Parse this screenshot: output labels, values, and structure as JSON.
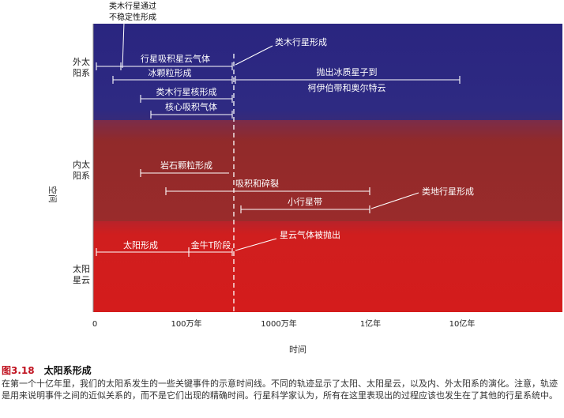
{
  "rows": [
    {
      "id": "outer",
      "label_lines": [
        "外太",
        "阳系"
      ]
    },
    {
      "id": "inner",
      "label_lines": [
        "内太",
        "阳系"
      ]
    },
    {
      "id": "nebula",
      "label_lines": [
        "太阳",
        "星云"
      ]
    }
  ],
  "y_axis_label": "空间",
  "x_axis_label": "时间",
  "ticks": [
    "0",
    "100万年",
    "1000万年",
    "1亿年",
    "10亿年"
  ],
  "events": {
    "outer_line1": "类木行星通过",
    "outer_line2": "不稳定性形成",
    "jovian_form": "类木行星形成",
    "gas_accretion": "行星吸积星云气体",
    "ice_grains": "冰颗粒形成",
    "ice_scatter_1": "抛出冰质星子到",
    "ice_scatter_2": "柯伊伯带和奥尔特云",
    "jovian_cores": "类木行星核形成",
    "core_accretion": "核心吸积气体",
    "rock_grains": "岩石颗粒形成",
    "accretion_collision": "吸积和碎裂",
    "asteroid_belt": "小行星带",
    "terrestrial": "类地行星形成",
    "sun_form": "太阳形成",
    "t_tauri": "金牛T阶段",
    "gas_ejected": "星云气体被抛出"
  },
  "caption": {
    "number": "图3.18",
    "title": "太阳系形成",
    "text": "在第一个十亿年里，我们的太阳系发生的一些关键事件的示意时间线。不同的轨迹显示了太阳、太阳星云，以及内、外太阳系的演化。注意，轨迹是用来说明事件之间的近似关系的，而不是它们出现的精确时间。行星科学家认为，所有在这里表现出的过程应该也发生在了其他的行星系统中。"
  },
  "colors": {
    "outer": "#27237a",
    "inner": "#8e2a2a",
    "nebula": "#d21e1e",
    "caption_number": "#c0121f"
  }
}
